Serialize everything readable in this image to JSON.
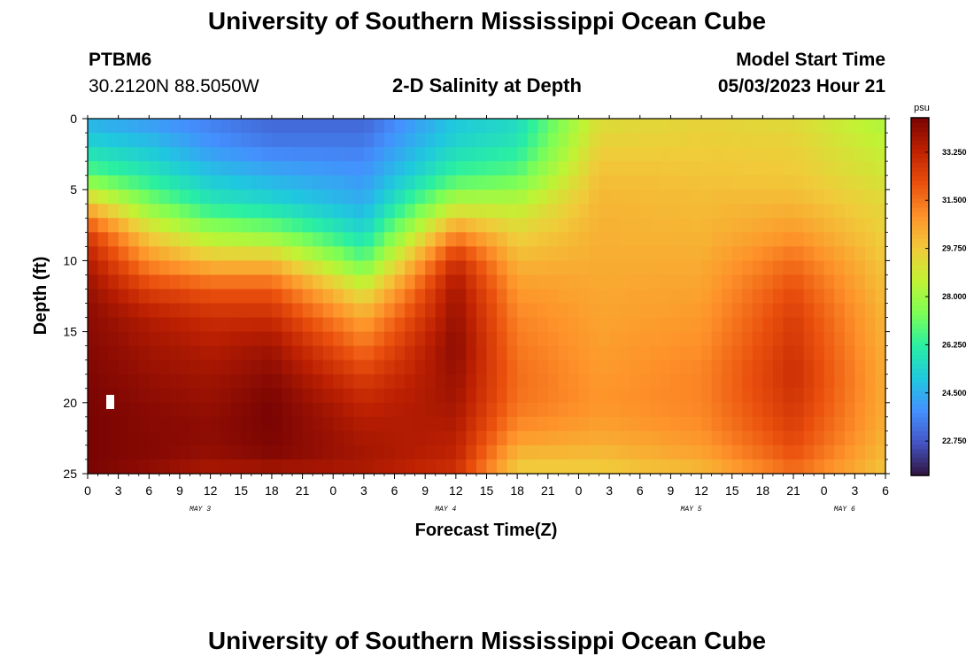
{
  "page": {
    "title_top": "University of Southern Mississippi Ocean Cube",
    "title_bottom": "University of Southern Mississippi Ocean Cube",
    "station_id": "PTBM6",
    "station_coords": "30.2120N  88.5050W",
    "plot_title": "2-D Salinity at Depth",
    "model_start_label": "Model Start Time",
    "model_start_time": "05/03/2023 Hour 21"
  },
  "colors": {
    "colormap": [
      "#30123b",
      "#4454c4",
      "#4490fe",
      "#1fc8de",
      "#29efa2",
      "#7dfe56",
      "#c1f334",
      "#f1ca3a",
      "#fe922a",
      "#ea4f0d",
      "#be2102",
      "#7a0403"
    ]
  },
  "chart_data": {
    "type": "heatmap",
    "title": "2-D Salinity at Depth",
    "xlabel": "Forecast Time(Z)",
    "ylabel": "Depth (ft)",
    "x_range_hours": [
      0,
      78
    ],
    "ylim": [
      0,
      25
    ],
    "x_tick_labels": [
      "0",
      "3",
      "6",
      "9",
      "12",
      "15",
      "18",
      "21",
      "0",
      "3",
      "6",
      "9",
      "12",
      "15",
      "18",
      "21",
      "0",
      "3",
      "6",
      "9",
      "12",
      "15",
      "18",
      "21",
      "0",
      "3",
      "6"
    ],
    "y_tick_labels": [
      "0",
      "5",
      "10",
      "15",
      "20",
      "25"
    ],
    "y_tick_values": [
      0,
      5,
      10,
      15,
      20,
      25
    ],
    "day_labels": [
      {
        "label": "MAY 3",
        "hour": 11
      },
      {
        "label": "MAY 4",
        "hour": 35
      },
      {
        "label": "MAY 5",
        "hour": 59
      },
      {
        "label": "MAY 6",
        "hour": 74
      }
    ],
    "colorbar": {
      "unit": "psu",
      "min": 21.5,
      "max": 34.5,
      "tick_values": [
        22.75,
        24.5,
        26.25,
        28.0,
        29.75,
        31.5,
        33.25
      ],
      "tick_labels": [
        "22.750",
        "24.500",
        "26.250",
        "28.000",
        "29.750",
        "31.500",
        "33.250"
      ]
    },
    "approx_profiles": {
      "depth_ft": [
        0,
        2,
        4,
        6,
        8,
        10,
        12,
        14,
        16,
        18,
        20,
        22,
        24,
        25
      ],
      "note": "Approximate salinity (psu) at each depth for selected forecast hours",
      "columns": [
        {
          "hour": 0,
          "psu": [
            24.5,
            25.5,
            27.0,
            30.0,
            32.5,
            33.5,
            34.0,
            34.2,
            34.3,
            34.4,
            34.5,
            34.5,
            34.5,
            34.5
          ]
        },
        {
          "hour": 6,
          "psu": [
            24.0,
            25.0,
            26.0,
            27.5,
            29.5,
            31.0,
            32.5,
            33.5,
            33.8,
            34.0,
            34.2,
            34.3,
            34.3,
            34.0
          ]
        },
        {
          "hour": 12,
          "psu": [
            23.5,
            24.0,
            25.0,
            26.0,
            28.0,
            30.0,
            32.0,
            33.0,
            33.5,
            33.8,
            34.0,
            34.2,
            34.0,
            33.5
          ]
        },
        {
          "hour": 18,
          "psu": [
            23.0,
            23.5,
            24.5,
            25.5,
            27.5,
            30.0,
            32.0,
            33.0,
            33.8,
            34.2,
            34.5,
            34.5,
            34.3,
            33.5
          ]
        },
        {
          "hour": 27,
          "psu": [
            23.0,
            23.5,
            24.0,
            24.5,
            25.5,
            27.0,
            29.0,
            30.5,
            31.5,
            32.5,
            33.2,
            33.6,
            33.8,
            33.5
          ]
        },
        {
          "hour": 36,
          "psu": [
            25.0,
            25.5,
            26.5,
            28.5,
            31.0,
            33.0,
            33.8,
            34.0,
            34.2,
            34.0,
            33.8,
            33.5,
            33.2,
            32.8
          ]
        },
        {
          "hour": 42,
          "psu": [
            25.5,
            26.0,
            27.0,
            28.5,
            29.5,
            30.2,
            30.8,
            31.2,
            31.4,
            31.6,
            31.5,
            31.0,
            30.0,
            29.6
          ]
        },
        {
          "hour": 50,
          "psu": [
            29.2,
            29.6,
            30.0,
            30.2,
            30.3,
            30.4,
            30.5,
            30.6,
            30.7,
            30.8,
            30.9,
            30.6,
            30.0,
            29.6
          ]
        },
        {
          "hour": 60,
          "psu": [
            29.5,
            29.7,
            29.9,
            30.1,
            30.2,
            30.4,
            30.6,
            30.8,
            31.0,
            31.2,
            31.2,
            31.0,
            30.5,
            30.0
          ]
        },
        {
          "hour": 69,
          "psu": [
            29.3,
            29.6,
            29.8,
            30.2,
            30.8,
            31.6,
            32.2,
            32.6,
            32.8,
            33.0,
            32.8,
            32.5,
            32.0,
            31.5
          ]
        },
        {
          "hour": 78,
          "psu": [
            28.2,
            28.6,
            29.0,
            29.4,
            29.6,
            29.8,
            30.0,
            30.2,
            30.3,
            30.4,
            30.4,
            30.3,
            30.0,
            29.8
          ]
        }
      ]
    }
  }
}
